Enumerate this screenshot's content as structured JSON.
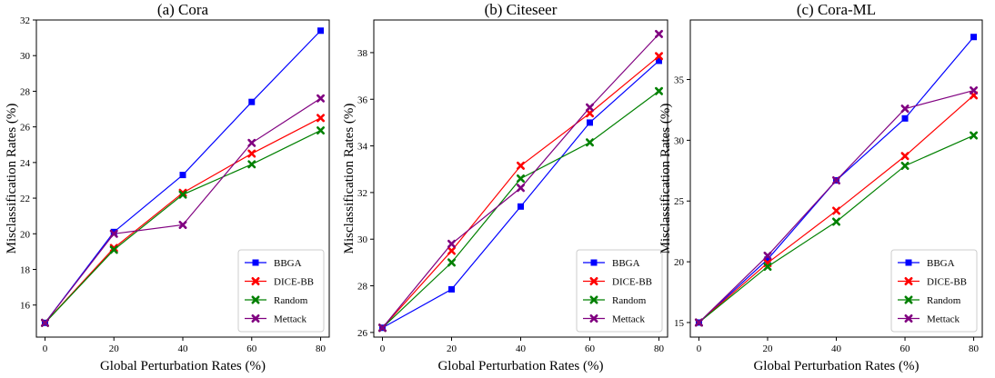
{
  "chart_data": [
    {
      "type": "line",
      "title": "(a) Cora",
      "xlabel": "Global Perturbation Rates (%)",
      "ylabel": "Misclassification Rates (%)",
      "x": [
        0,
        20,
        40,
        60,
        80
      ],
      "xticks": [
        "0",
        "20",
        "40",
        "60",
        "80"
      ],
      "xlim": [
        -2.5,
        82.5
      ],
      "ylim": [
        14.2,
        32.0
      ],
      "yticks": [
        16,
        18,
        20,
        22,
        24,
        26,
        28,
        30,
        32
      ],
      "ytick_labels": [
        "16",
        "18",
        "20",
        "22",
        "24",
        "26",
        "28",
        "30",
        "32"
      ],
      "legend_position": "lower-right",
      "series": [
        {
          "name": "BBGA",
          "color": "#0000ff",
          "marker": "square",
          "values": [
            15.0,
            20.1,
            23.3,
            27.4,
            31.4
          ]
        },
        {
          "name": "DICE-BB",
          "color": "#ff0000",
          "marker": "x",
          "values": [
            15.0,
            19.2,
            22.3,
            24.5,
            26.5
          ]
        },
        {
          "name": "Random",
          "color": "#008000",
          "marker": "x",
          "values": [
            15.0,
            19.1,
            22.2,
            23.9,
            25.8
          ]
        },
        {
          "name": "Mettack",
          "color": "#800080",
          "marker": "x",
          "values": [
            15.0,
            20.0,
            20.5,
            25.1,
            27.6
          ]
        }
      ]
    },
    {
      "type": "line",
      "title": "(b) Citeseer",
      "xlabel": "Global Perturbation Rates (%)",
      "ylabel": "Misclassification Rates (%)",
      "x": [
        0,
        20,
        40,
        60,
        80
      ],
      "xticks": [
        "0",
        "20",
        "40",
        "60",
        "80"
      ],
      "xlim": [
        -2.5,
        82.5
      ],
      "ylim": [
        25.8,
        39.4
      ],
      "yticks": [
        26,
        28,
        30,
        32,
        34,
        36,
        38
      ],
      "ytick_labels": [
        "26",
        "28",
        "30",
        "32",
        "34",
        "36",
        "38"
      ],
      "legend_position": "lower-right",
      "series": [
        {
          "name": "BBGA",
          "color": "#0000ff",
          "marker": "square",
          "values": [
            26.2,
            27.85,
            31.4,
            35.0,
            37.65
          ]
        },
        {
          "name": "DICE-BB",
          "color": "#ff0000",
          "marker": "x",
          "values": [
            26.2,
            29.5,
            33.15,
            35.4,
            37.85
          ]
        },
        {
          "name": "Random",
          "color": "#008000",
          "marker": "x",
          "values": [
            26.2,
            29.0,
            32.6,
            34.15,
            36.35
          ]
        },
        {
          "name": "Mettack",
          "color": "#800080",
          "marker": "x",
          "values": [
            26.2,
            29.8,
            32.2,
            35.65,
            38.8
          ]
        }
      ]
    },
    {
      "type": "line",
      "title": "(c) Cora-ML",
      "xlabel": "Global Perturbation Rates (%)",
      "ylabel": "Misclassification Rates (%)",
      "x": [
        0,
        20,
        40,
        60,
        80
      ],
      "xticks": [
        "0",
        "20",
        "40",
        "60",
        "80"
      ],
      "xlim": [
        -2.5,
        82.5
      ],
      "ylim": [
        13.8,
        39.9
      ],
      "yticks": [
        15,
        20,
        25,
        30,
        35
      ],
      "ytick_labels": [
        "15",
        "20",
        "25",
        "30",
        "35"
      ],
      "legend_position": "lower-right",
      "series": [
        {
          "name": "BBGA",
          "color": "#0000ff",
          "marker": "square",
          "values": [
            15.0,
            20.2,
            26.7,
            31.8,
            38.5
          ]
        },
        {
          "name": "DICE-BB",
          "color": "#ff0000",
          "marker": "x",
          "values": [
            15.0,
            19.9,
            24.2,
            28.7,
            33.7
          ]
        },
        {
          "name": "Random",
          "color": "#008000",
          "marker": "x",
          "values": [
            15.0,
            19.6,
            23.3,
            27.9,
            30.4
          ]
        },
        {
          "name": "Mettack",
          "color": "#800080",
          "marker": "x",
          "values": [
            15.0,
            20.5,
            26.7,
            32.6,
            34.1
          ]
        }
      ]
    }
  ]
}
